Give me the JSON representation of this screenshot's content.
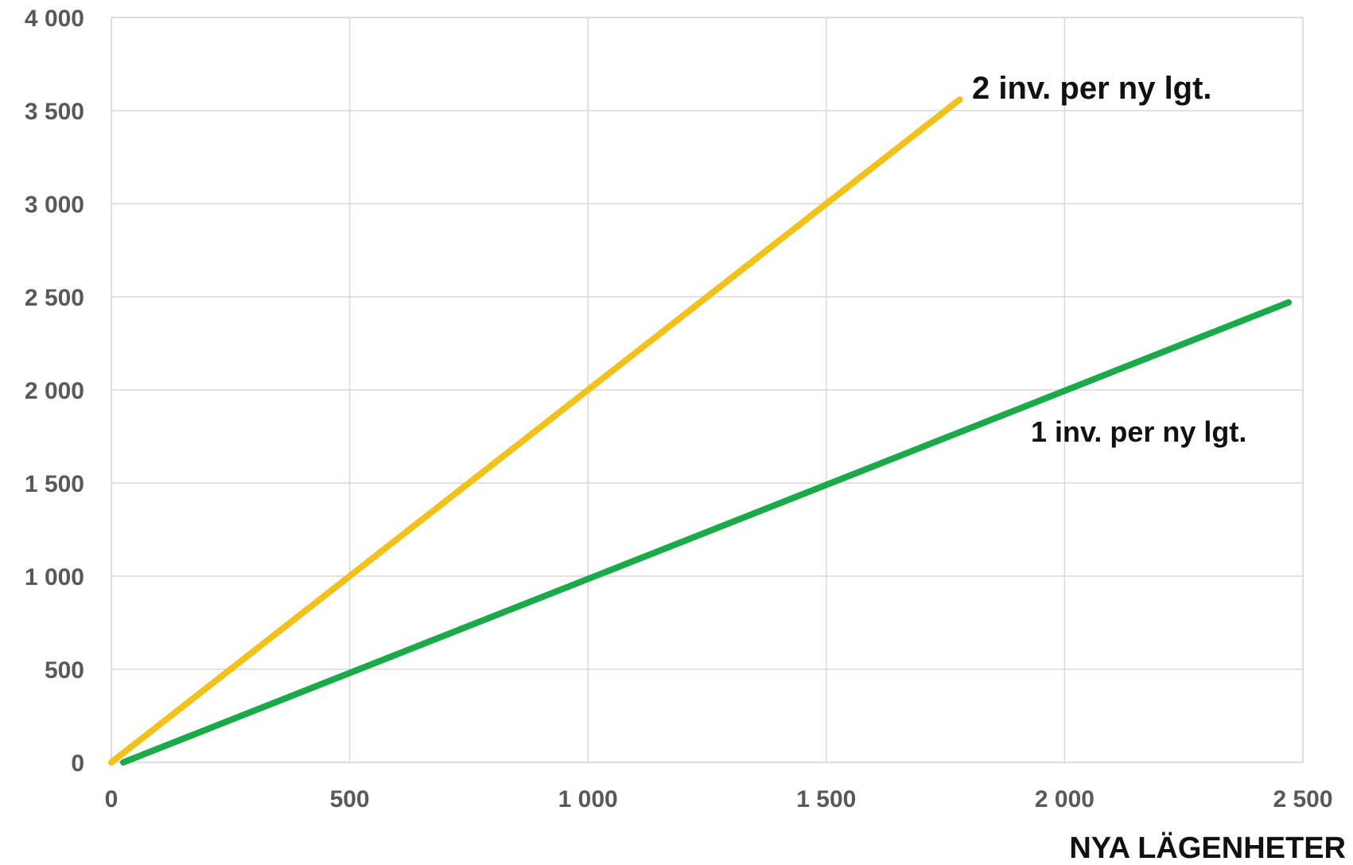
{
  "chart_data": {
    "type": "line",
    "title": "",
    "xlabel": "NYA LÄGENHETER",
    "ylabel": "",
    "xlim": [
      0,
      2500
    ],
    "ylim": [
      0,
      4000
    ],
    "grid": true,
    "x_ticks": [
      0,
      500,
      1000,
      1500,
      2000,
      2500
    ],
    "x_tick_labels": [
      "0",
      "500",
      "1 000",
      "1 500",
      "2 000",
      "2 500"
    ],
    "y_ticks": [
      0,
      500,
      1000,
      1500,
      2000,
      2500,
      3000,
      3500,
      4000
    ],
    "y_tick_labels": [
      "0",
      "500",
      "1 000",
      "1 500",
      "2 000",
      "2 500",
      "3 000",
      "3 500",
      "4 000"
    ],
    "series": [
      {
        "label": "2 inv. per ny lgt.",
        "color": "#f2c21b",
        "points": [
          [
            0,
            0
          ],
          [
            1780,
            3560
          ]
        ]
      },
      {
        "label": "1 inv. per ny lgt.",
        "color": "#1aaa48",
        "points": [
          [
            25,
            0
          ],
          [
            2470,
            2470
          ]
        ]
      }
    ]
  }
}
